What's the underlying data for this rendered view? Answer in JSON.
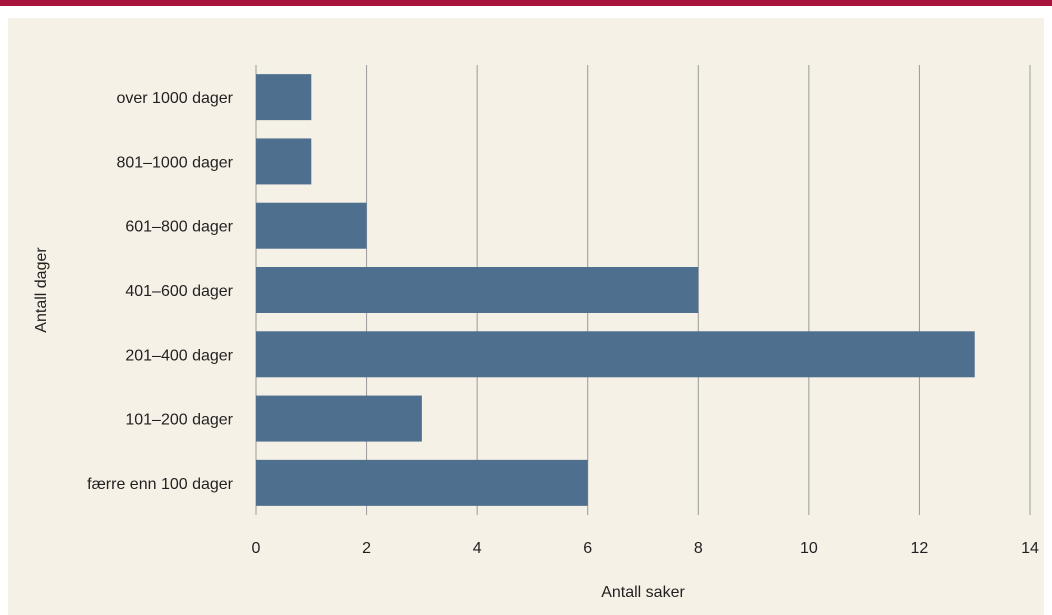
{
  "colors": {
    "top_rule": "#a6133c",
    "panel_background": "#f6f1e6",
    "bar": "#4e6f8d",
    "gridline": "#9a9a9a",
    "text": "#231f20"
  },
  "chart_data": {
    "type": "bar",
    "orientation": "horizontal",
    "categories": [
      "over 1000 dager",
      "801–1000 dager",
      "601–800 dager",
      "401–600 dager",
      "201–400 dager",
      "101–200 dager",
      "færre enn 100 dager"
    ],
    "values": [
      1,
      1,
      2,
      8,
      13,
      3,
      6
    ],
    "title": "",
    "xlabel": "Antall saker",
    "ylabel": "Antall dager",
    "xlim": [
      0,
      14
    ],
    "xticks": [
      0,
      2,
      4,
      6,
      8,
      10,
      12,
      14
    ],
    "xtick_labels": [
      "0",
      "2",
      "4",
      "6",
      "8",
      "10",
      "12",
      "14"
    ],
    "grid": "vertical",
    "legend": "none"
  }
}
